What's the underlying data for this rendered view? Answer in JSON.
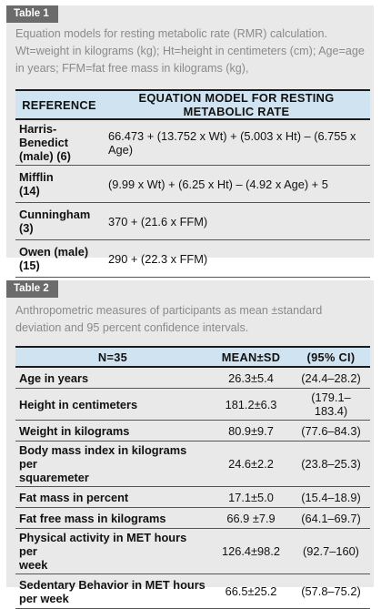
{
  "table1": {
    "tag": "Table 1",
    "caption": "Equation models for resting metabolic rate (RMR) calculation. Wt=weight in kilograms (kg); Ht=height in centimeters (cm); Age=age in years; FFM=fat free mass in kilograms (kg),",
    "headers": [
      "REFERENCE",
      "EQUATION MODEL FOR RESTING METABOLIC RATE"
    ],
    "rows": [
      {
        "ref_line1": "Harris-Benedict",
        "ref_line2": "(male) (6)",
        "equation": "66.473 + (13.752 x Wt) + (5.003 x Ht) – (6.755 x Age)"
      },
      {
        "ref_line1": "Mifflin",
        "ref_line2": "(14)",
        "equation": "(9.99 x Wt) + (6.25 x Ht) – (4.92 x Age) + 5"
      },
      {
        "ref_line1": "Cunningham",
        "ref_line2": "(3)",
        "equation": "370 + (21.6 x FFM)"
      },
      {
        "ref_line1": "Owen (male)",
        "ref_line2": "(15)",
        "equation": "290 + (22.3 x FFM)"
      }
    ]
  },
  "table2": {
    "tag": "Table 2",
    "caption": "Anthropometric measures of participants as mean ±standard deviation and 95 percent confidence intervals.",
    "headers": [
      "N=35",
      "MEAN±SD",
      "(95% CI)"
    ],
    "rows": [
      {
        "label_line1": "Age in years",
        "label_line2": "",
        "mean_sd": "26.3±5.4",
        "ci": "(24.4–28.2)"
      },
      {
        "label_line1": "Height in centimeters",
        "label_line2": "",
        "mean_sd": "181.2±6.3",
        "ci": "(179.1–183.4)"
      },
      {
        "label_line1": "Weight in kilograms",
        "label_line2": "",
        "mean_sd": "80.9±9.7",
        "ci": "(77.6–84.3)"
      },
      {
        "label_line1": "Body mass index in kilograms per",
        "label_line2": "squaremeter",
        "mean_sd": "24.6±2.2",
        "ci": "(23.8–25.3)"
      },
      {
        "label_line1": "Fat mass in percent",
        "label_line2": "",
        "mean_sd": "17.1±5.0",
        "ci": "(15.4–18.9)"
      },
      {
        "label_line1": "Fat free mass in kilograms",
        "label_line2": "",
        "mean_sd": "66.9 ±7.9",
        "ci": "(64.1–69.7)"
      },
      {
        "label_line1": "Physical activity in MET hours per",
        "label_line2": "week",
        "mean_sd": "126.4±98.2",
        "ci": "(92.7–160)"
      },
      {
        "label_line1": "Sedentary Behavior in MET hours",
        "label_line2": "per week",
        "mean_sd": "66.5±25.2",
        "ci": "(57.8–75.2)"
      }
    ]
  }
}
